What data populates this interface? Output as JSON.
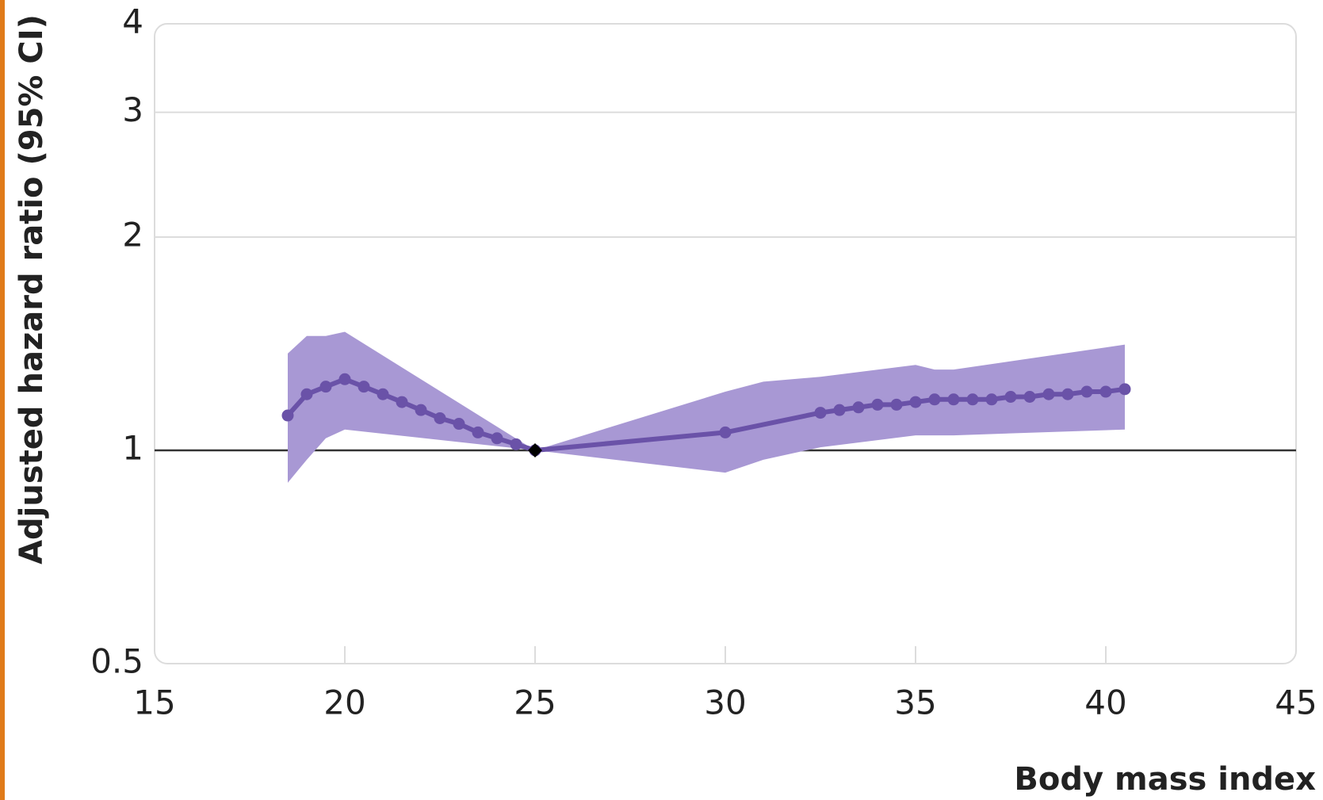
{
  "chart_data": {
    "type": "line",
    "ylabel": "Adjusted hazard ratio (95% CI)",
    "xlabel": "Body mass index",
    "xlim": [
      15,
      45
    ],
    "xticks": [
      15,
      20,
      25,
      30,
      35,
      40,
      45
    ],
    "ylim": [
      0.5,
      4
    ],
    "yticks": [
      0.5,
      1,
      2,
      3,
      4
    ],
    "log_y": true,
    "grid": true,
    "series": [
      {
        "color": "#6a52a8",
        "x": [
          18.5,
          19,
          19.5,
          20,
          20.5,
          21,
          21.5,
          22,
          22.5,
          23,
          23.5,
          24,
          24.5,
          25,
          30,
          32.5,
          33,
          33.5,
          34,
          34.5,
          35,
          35.5,
          36,
          36.5,
          37,
          37.5,
          38,
          38.5,
          39,
          39.5,
          40,
          40.5
        ],
        "values": [
          1.12,
          1.2,
          1.23,
          1.26,
          1.23,
          1.2,
          1.17,
          1.14,
          1.11,
          1.09,
          1.06,
          1.04,
          1.02,
          1,
          1.06,
          1.13,
          1.14,
          1.15,
          1.16,
          1.16,
          1.17,
          1.18,
          1.18,
          1.18,
          1.18,
          1.19,
          1.19,
          1.2,
          1.2,
          1.21,
          1.21,
          1.22
        ]
      }
    ],
    "ci": {
      "color": "#a898d4",
      "x": [
        18.5,
        19,
        19.5,
        20,
        25,
        30,
        31,
        32.5,
        35,
        35.5,
        36,
        40.5
      ],
      "upper": [
        1.37,
        1.45,
        1.45,
        1.47,
        1,
        1.21,
        1.25,
        1.27,
        1.32,
        1.3,
        1.3,
        1.41
      ],
      "lower": [
        0.9,
        0.97,
        1.04,
        1.07,
        1,
        0.93,
        0.97,
        1.01,
        1.05,
        1.05,
        1.05,
        1.07
      ]
    },
    "reference": {
      "x": 25,
      "value": 1
    }
  }
}
